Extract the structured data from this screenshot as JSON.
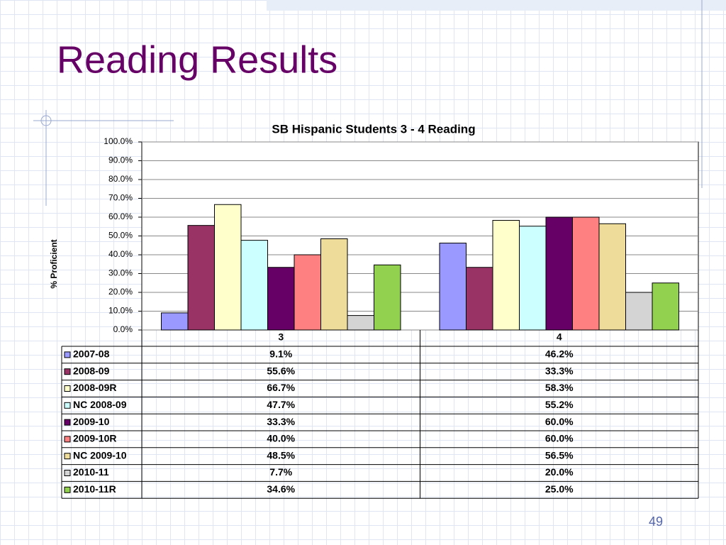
{
  "slide": {
    "title": "Reading Results",
    "page_number": "49"
  },
  "chart_data": {
    "type": "bar",
    "title": "SB Hispanic Students 3 - 4 Reading",
    "y_label": "% Proficient",
    "categories": [
      "3",
      "4"
    ],
    "ylim": [
      0,
      100
    ],
    "yticks": [
      {
        "value": 0,
        "label": "0.0%"
      },
      {
        "value": 10,
        "label": "10.0%"
      },
      {
        "value": 20,
        "label": "20.0%"
      },
      {
        "value": 30,
        "label": "30.0%"
      },
      {
        "value": 40,
        "label": "40.0%"
      },
      {
        "value": 50,
        "label": "50.0%"
      },
      {
        "value": 60,
        "label": "60.0%"
      },
      {
        "value": 70,
        "label": "70.0%"
      },
      {
        "value": 80,
        "label": "80.0%"
      },
      {
        "value": 90,
        "label": "90.0%"
      },
      {
        "value": 100,
        "label": "100.0%"
      }
    ],
    "grid": true,
    "series": [
      {
        "name": "2007-08",
        "color": "#9999ff",
        "values": [
          9.1,
          46.2
        ],
        "value_labels": [
          "9.1%",
          "46.2%"
        ]
      },
      {
        "name": "2008-09",
        "color": "#993366",
        "values": [
          55.6,
          33.3
        ],
        "value_labels": [
          "55.6%",
          "33.3%"
        ]
      },
      {
        "name": "2008-09R",
        "color": "#ffffcc",
        "values": [
          66.7,
          58.3
        ],
        "value_labels": [
          "66.7%",
          "58.3%"
        ]
      },
      {
        "name": "NC 2008-09",
        "color": "#ccffff",
        "values": [
          47.7,
          55.2
        ],
        "value_labels": [
          "47.7%",
          "55.2%"
        ]
      },
      {
        "name": "2009-10",
        "color": "#660066",
        "values": [
          33.3,
          60.0
        ],
        "value_labels": [
          "33.3%",
          "60.0%"
        ]
      },
      {
        "name": "2009-10R",
        "color": "#ff8080",
        "values": [
          40.0,
          60.0
        ],
        "value_labels": [
          "40.0%",
          "60.0%"
        ]
      },
      {
        "name": "NC 2009-10",
        "color": "#eedc9a",
        "values": [
          48.5,
          56.5
        ],
        "value_labels": [
          "48.5%",
          "56.5%"
        ]
      },
      {
        "name": "2010-11",
        "color": "#d4d4d4",
        "values": [
          7.7,
          20.0
        ],
        "value_labels": [
          "7.7%",
          "20.0%"
        ]
      },
      {
        "name": "2010-11R",
        "color": "#92d050",
        "values": [
          34.6,
          25.0
        ],
        "value_labels": [
          "34.6%",
          "25.0%"
        ]
      }
    ]
  }
}
